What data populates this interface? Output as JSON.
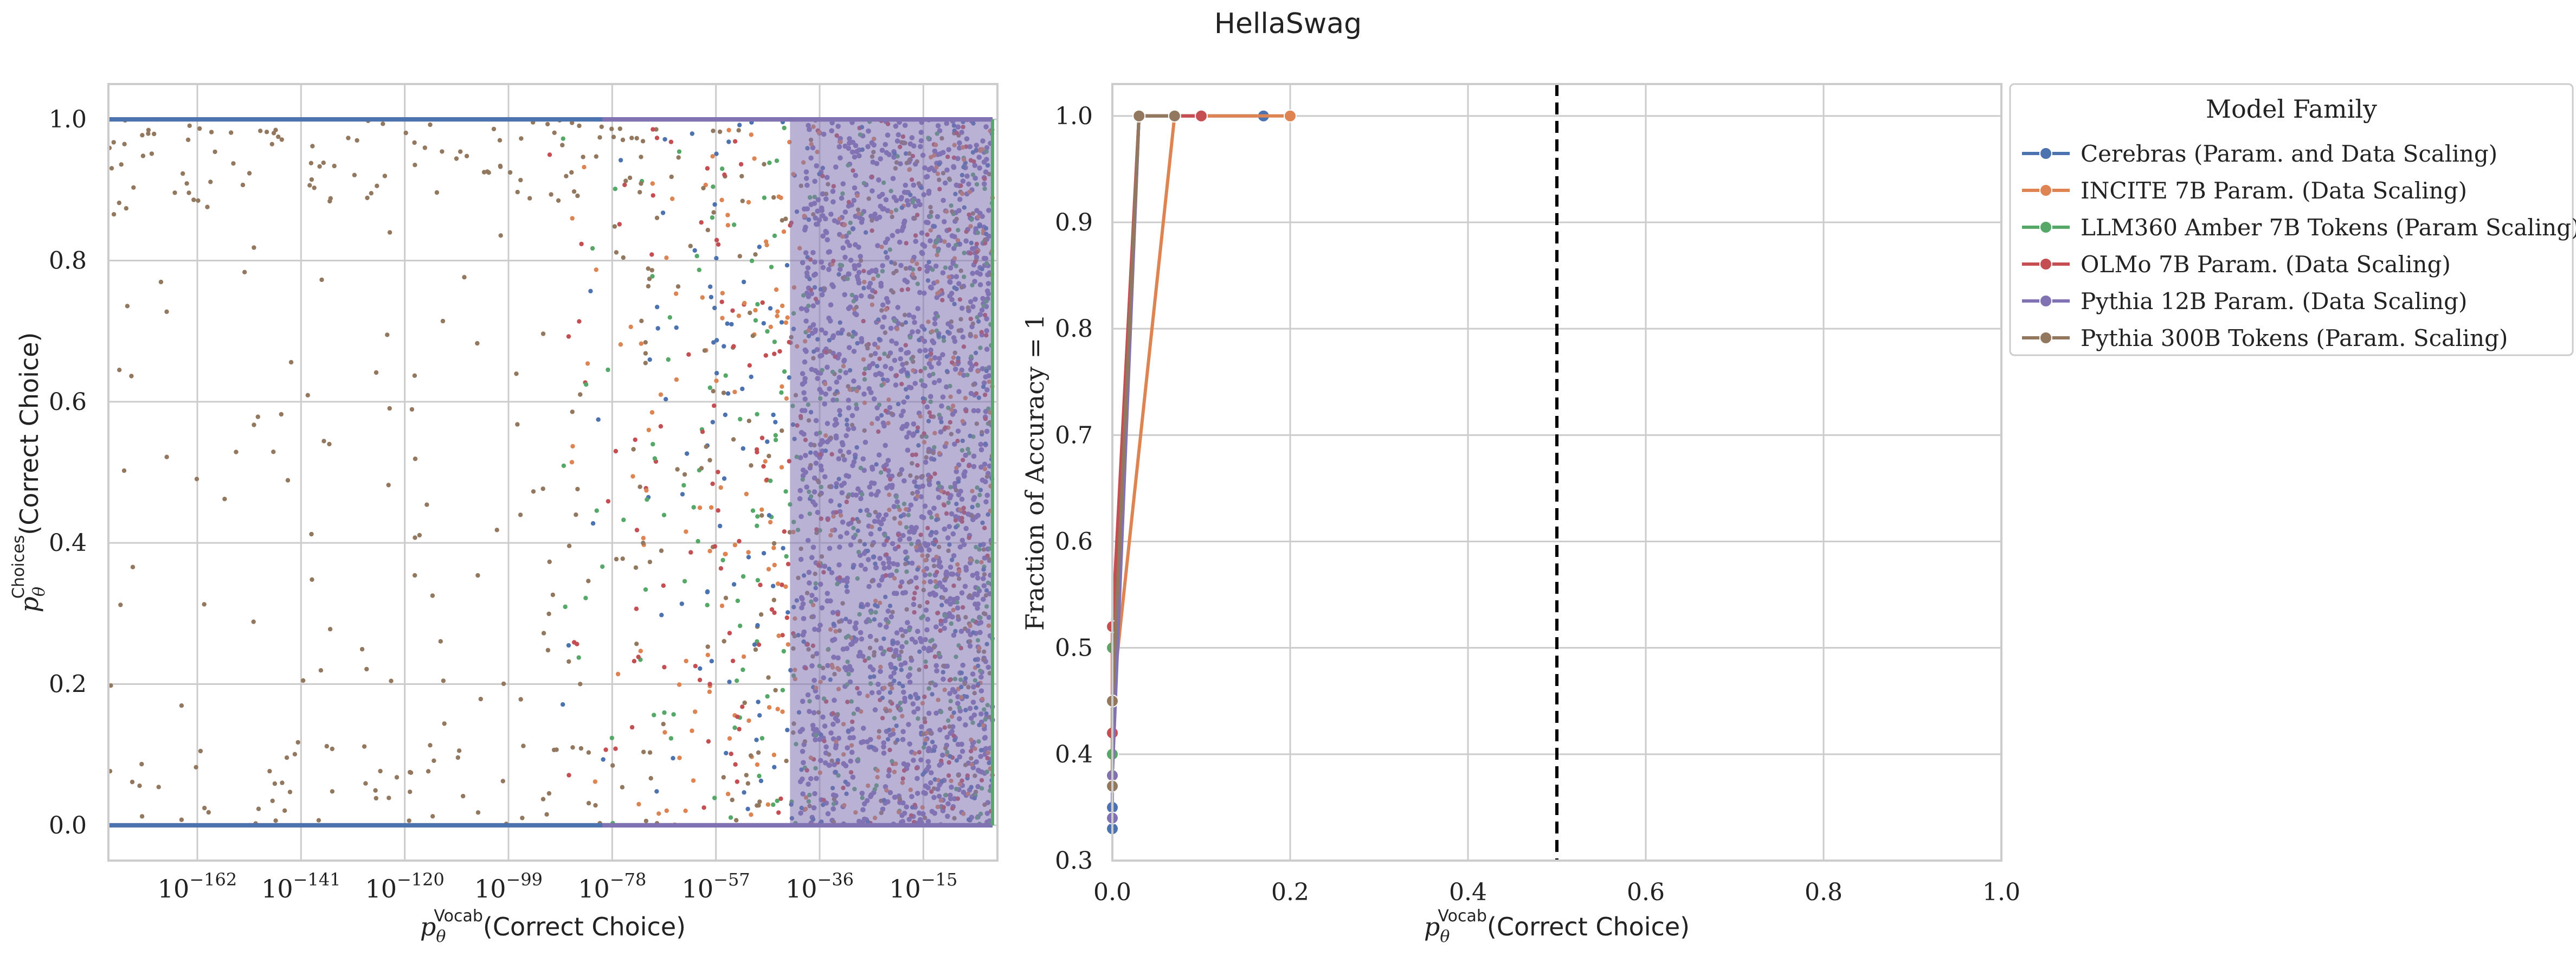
{
  "figure": {
    "title": "HellaSwag"
  },
  "colors": {
    "Cerebras": "#4c72b0",
    "INCITE": "#dd8452",
    "LLM360": "#55a868",
    "OLMo": "#c44e52",
    "Pythia12B": "#8172b3",
    "Pythia300B": "#937860",
    "threshold_line": "#000000",
    "grid": "#cccccc"
  },
  "chart_data": [
    {
      "type": "scatter",
      "title": "",
      "xlabel_base": "p",
      "xlabel_sub": "θ",
      "xlabel_sup": "Vocab",
      "xlabel_rest": "(Correct Choice)",
      "ylabel_base": "p",
      "ylabel_sub": "θ",
      "ylabel_sup": "Choices",
      "ylabel_rest": "(Correct Choice)",
      "x_scale": "log",
      "x_tick_exponents": [
        -162,
        -141,
        -120,
        -99,
        -78,
        -57,
        -36,
        -15
      ],
      "x_tick_labels": [
        "10",
        "10",
        "10",
        "10",
        "10",
        "10",
        "10",
        "10"
      ],
      "x_tick_sup": [
        "−162",
        "−141",
        "−120",
        "−99",
        "−78",
        "−57",
        "−36",
        "−15"
      ],
      "xlim_log10": [
        -180,
        0
      ],
      "ylim": [
        -0.05,
        1.05
      ],
      "y_ticks": [
        "0.0",
        "0.2",
        "0.4",
        "0.6",
        "0.8",
        "1.0"
      ],
      "grid": true,
      "series_names": [
        "Cerebras",
        "INCITE",
        "LLM360",
        "OLMo",
        "Pythia12B",
        "Pythia300B"
      ]
    },
    {
      "type": "line",
      "title": "",
      "xlabel_base": "p",
      "xlabel_sub": "θ",
      "xlabel_sup": "Vocab",
      "xlabel_rest": "(Correct Choice)",
      "ylabel": "Fraction of Accuracy = 1",
      "xlim": [
        0.0,
        1.0
      ],
      "ylim": [
        0.3,
        1.03
      ],
      "x_ticks": [
        "0.0",
        "0.2",
        "0.4",
        "0.6",
        "0.8",
        "1.0"
      ],
      "y_ticks": [
        "0.3",
        "0.4",
        "0.5",
        "0.6",
        "0.7",
        "0.8",
        "0.9",
        "1.0"
      ],
      "threshold_x": 0.5,
      "grid": true,
      "legend_title": "Model Family",
      "legend_position": "outside-right",
      "series": [
        {
          "key": "Cerebras",
          "name": "Cerebras (Param. and Data Scaling)",
          "x": [
            0.0,
            0.0,
            0.0,
            0.03,
            0.07,
            0.1,
            0.17
          ],
          "y": [
            0.33,
            0.35,
            0.4,
            1.0,
            1.0,
            1.0,
            1.0
          ]
        },
        {
          "key": "INCITE",
          "name": "INCITE 7B Param. (Data Scaling)",
          "x": [
            0.0,
            0.0,
            0.07,
            0.2
          ],
          "y": [
            0.37,
            0.45,
            1.0,
            1.0
          ]
        },
        {
          "key": "LLM360",
          "name": "LLM360 Amber 7B Tokens (Param Scaling)",
          "x": [
            0.0,
            0.0,
            0.03
          ],
          "y": [
            0.4,
            0.5,
            1.0
          ]
        },
        {
          "key": "OLMo",
          "name": "OLMo 7B Param. (Data Scaling)",
          "x": [
            0.0,
            0.0,
            0.03,
            0.1
          ],
          "y": [
            0.42,
            0.52,
            1.0,
            1.0
          ]
        },
        {
          "key": "Pythia12B",
          "name": "Pythia 12B Param. (Data Scaling)",
          "x": [
            0.0,
            0.0,
            0.03
          ],
          "y": [
            0.34,
            0.38,
            1.0
          ]
        },
        {
          "key": "Pythia300B",
          "name": "Pythia 300B Tokens (Param. Scaling)",
          "x": [
            0.0,
            0.0,
            0.03,
            0.07
          ],
          "y": [
            0.37,
            0.45,
            1.0,
            1.0
          ]
        }
      ]
    }
  ]
}
